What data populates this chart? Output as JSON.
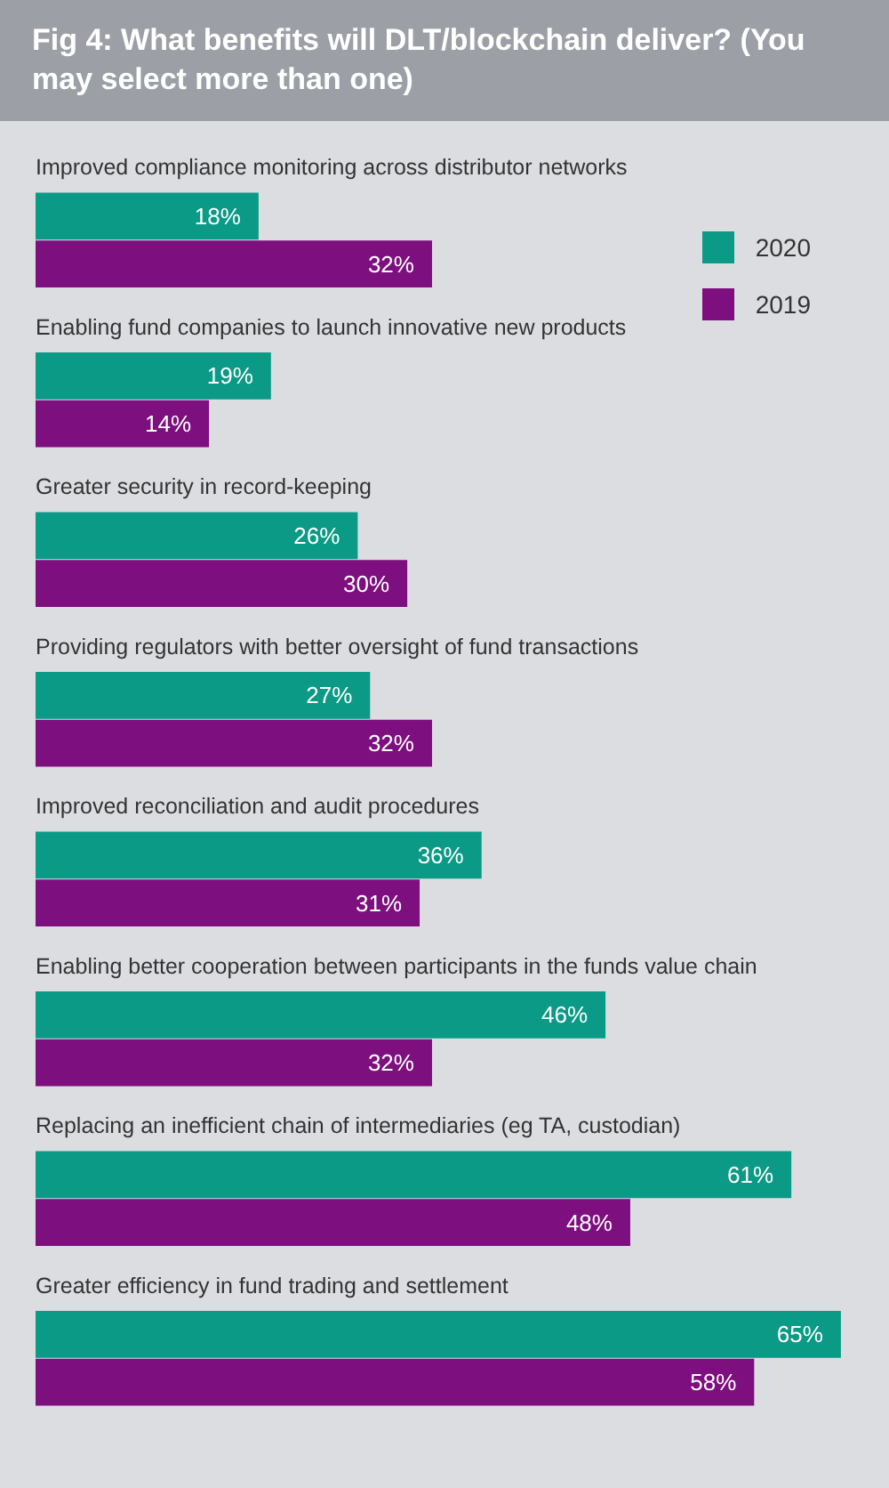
{
  "chart_data": {
    "type": "bar",
    "orientation": "horizontal",
    "title": "Fig 4: What benefits will DLT/blockchain deliver? (You may select more than one)",
    "categories": [
      "Improved compliance monitoring across distributor networks",
      "Enabling fund companies to launch innovative new products",
      "Greater security in record-keeping",
      "Providing regulators with better oversight of fund transactions",
      "Improved reconciliation and audit procedures",
      "Enabling better cooperation between participants in the funds value chain",
      "Replacing an inefficient chain of intermediaries (eg TA, custodian)",
      "Greater efficiency in fund trading and settlement"
    ],
    "series": [
      {
        "name": "2020",
        "color": "#0a9a85",
        "values": [
          18,
          19,
          26,
          27,
          36,
          46,
          61,
          65
        ],
        "value_labels": [
          "18%",
          "19%",
          "26%",
          "27%",
          "36%",
          "46%",
          "61%",
          "65%"
        ]
      },
      {
        "name": "2019",
        "color": "#7d0f7f",
        "values": [
          32,
          14,
          30,
          32,
          31,
          32,
          48,
          58
        ],
        "value_labels": [
          "32%",
          "14%",
          "30%",
          "32%",
          "31%",
          "32%",
          "48%",
          "58%"
        ]
      }
    ],
    "legend": "top right"
  }
}
